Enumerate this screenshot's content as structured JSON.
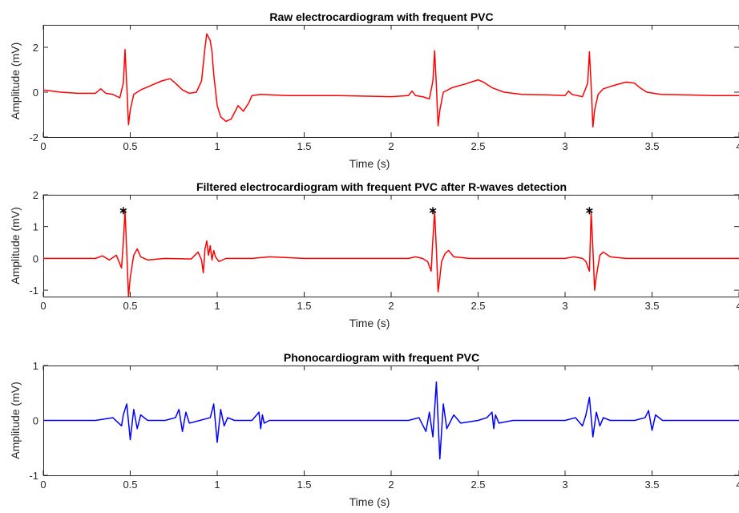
{
  "chart_data": [
    {
      "type": "line",
      "title": "Raw electrocardiogram with frequent PVC",
      "xlabel": "Time (s)",
      "ylabel": "Amplitude (mV)",
      "xlim": [
        0,
        4
      ],
      "ylim": [
        -2,
        3
      ],
      "xticks": [
        0,
        0.5,
        1,
        1.5,
        2,
        2.5,
        3,
        3.5,
        4
      ],
      "xtick_labels": [
        "0",
        "0.5",
        "1",
        "1.5",
        "2",
        "2.5",
        "3",
        "3.5",
        "4"
      ],
      "yticks": [
        -2,
        0,
        2
      ],
      "ytick_labels": [
        "-2",
        "0",
        "2"
      ],
      "grid": false,
      "series": [
        {
          "color": "#ff0000",
          "x": [
            0,
            0.1,
            0.2,
            0.3,
            0.33,
            0.36,
            0.4,
            0.44,
            0.46,
            0.47,
            0.48,
            0.49,
            0.5,
            0.52,
            0.56,
            0.62,
            0.68,
            0.73,
            0.76,
            0.8,
            0.84,
            0.88,
            0.91,
            0.93,
            0.94,
            0.96,
            0.97,
            0.98,
            1.0,
            1.02,
            1.05,
            1.08,
            1.12,
            1.15,
            1.18,
            1.2,
            1.25,
            1.4,
            1.7,
            2.0,
            2.1,
            2.12,
            2.14,
            2.18,
            2.22,
            2.24,
            2.25,
            2.26,
            2.27,
            2.28,
            2.3,
            2.35,
            2.42,
            2.5,
            2.53,
            2.58,
            2.65,
            2.75,
            2.9,
            3.0,
            3.02,
            3.04,
            3.1,
            3.13,
            3.14,
            3.15,
            3.16,
            3.17,
            3.19,
            3.22,
            3.28,
            3.35,
            3.4,
            3.43,
            3.47,
            3.55,
            3.7,
            3.85,
            4.0
          ],
          "y": [
            0.1,
            0,
            -0.05,
            -0.05,
            0.15,
            -0.05,
            -0.1,
            -0.25,
            0.4,
            1.9,
            0.3,
            -1.45,
            -0.8,
            -0.1,
            0.1,
            0.3,
            0.5,
            0.6,
            0.4,
            0.1,
            -0.05,
            0,
            0.5,
            2.0,
            2.6,
            2.3,
            1.8,
            0.8,
            -0.6,
            -1.1,
            -1.3,
            -1.2,
            -0.6,
            -0.85,
            -0.5,
            -0.15,
            -0.1,
            -0.15,
            -0.15,
            -0.2,
            -0.15,
            0.05,
            -0.15,
            -0.2,
            -0.3,
            0.5,
            1.85,
            0.3,
            -1.5,
            -0.8,
            0,
            0.2,
            0.35,
            0.55,
            0.45,
            0.2,
            0,
            -0.1,
            -0.12,
            -0.15,
            0.05,
            -0.1,
            -0.2,
            0.4,
            1.8,
            0.3,
            -1.55,
            -0.8,
            -0.1,
            0.15,
            0.3,
            0.45,
            0.4,
            0.2,
            0,
            -0.1,
            -0.12,
            -0.15,
            -0.15
          ]
        }
      ]
    },
    {
      "type": "line",
      "title": "Filtered electrocardiogram with frequent PVC after R-waves detection",
      "xlabel": "Time (s)",
      "ylabel": "Amplitude (mV)",
      "xlim": [
        0,
        4
      ],
      "ylim": [
        -1.2,
        2
      ],
      "xticks": [
        0,
        0.5,
        1,
        1.5,
        2,
        2.5,
        3,
        3.5,
        4
      ],
      "xtick_labels": [
        "0",
        "0.5",
        "1",
        "1.5",
        "2",
        "2.5",
        "3",
        "3.5",
        "4"
      ],
      "yticks": [
        -1,
        0,
        1,
        2
      ],
      "ytick_labels": [
        "-1",
        "0",
        "1",
        "2"
      ],
      "grid": false,
      "series": [
        {
          "color": "#ff0000",
          "x": [
            0,
            0.2,
            0.3,
            0.34,
            0.38,
            0.42,
            0.45,
            0.46,
            0.47,
            0.48,
            0.49,
            0.5,
            0.52,
            0.54,
            0.56,
            0.6,
            0.7,
            0.85,
            0.89,
            0.91,
            0.92,
            0.93,
            0.94,
            0.95,
            0.96,
            0.97,
            0.98,
            0.99,
            1.01,
            1.05,
            1.2,
            1.3,
            1.5,
            1.8,
            2.0,
            2.1,
            2.14,
            2.18,
            2.21,
            2.23,
            2.24,
            2.25,
            2.26,
            2.27,
            2.28,
            2.29,
            2.31,
            2.33,
            2.36,
            2.45,
            2.6,
            2.8,
            3.0,
            3.05,
            3.1,
            3.12,
            3.14,
            3.15,
            3.16,
            3.17,
            3.18,
            3.2,
            3.22,
            3.26,
            3.35,
            3.5,
            3.7,
            3.9,
            4.0
          ],
          "y": [
            0,
            0,
            0,
            0.08,
            -0.05,
            0.1,
            -0.3,
            0.5,
            1.5,
            0.2,
            -1.2,
            -0.6,
            0.1,
            0.3,
            0.05,
            -0.05,
            0,
            -0.02,
            0.2,
            -0.05,
            -0.45,
            0.3,
            0.55,
            0.1,
            0.4,
            -0.05,
            0.25,
            0.05,
            -0.1,
            0,
            0,
            0.05,
            0,
            0,
            0,
            0,
            0.05,
            0,
            -0.1,
            -0.4,
            0.6,
            1.45,
            0.3,
            -1.05,
            -0.6,
            -0.1,
            0.15,
            0.25,
            0.05,
            0,
            0,
            0,
            0,
            0.05,
            0,
            -0.1,
            -0.4,
            1.45,
            0.3,
            -1.0,
            -0.55,
            0.1,
            0.2,
            0.05,
            0,
            0,
            0,
            0,
            0
          ]
        },
        {
          "type": "scatter",
          "marker": "*",
          "color": "#000000",
          "x": [
            0.46,
            2.24,
            3.14
          ],
          "y": [
            1.5,
            1.5,
            1.5
          ]
        }
      ]
    },
    {
      "type": "line",
      "title": "Phonocardiogram with frequent PVC",
      "xlabel": "Time (s)",
      "ylabel": "Amplitude (mV)",
      "xlim": [
        0,
        4
      ],
      "ylim": [
        -1,
        1
      ],
      "xticks": [
        0,
        0.5,
        1,
        1.5,
        2,
        2.5,
        3,
        3.5,
        4
      ],
      "xtick_labels": [
        "0",
        "0.5",
        "1",
        "1.5",
        "2",
        "2.5",
        "3",
        "3.5",
        "4"
      ],
      "yticks": [
        -1,
        0,
        1
      ],
      "ytick_labels": [
        "-1",
        "0",
        "1"
      ],
      "grid": false,
      "series": [
        {
          "color": "#0000ff",
          "x": [
            0,
            0.3,
            0.4,
            0.45,
            0.46,
            0.48,
            0.5,
            0.52,
            0.54,
            0.56,
            0.6,
            0.7,
            0.76,
            0.78,
            0.8,
            0.82,
            0.84,
            0.9,
            0.96,
            0.98,
            1.0,
            1.02,
            1.04,
            1.06,
            1.1,
            1.2,
            1.24,
            1.25,
            1.26,
            1.27,
            1.3,
            1.5,
            1.8,
            2.1,
            2.16,
            2.2,
            2.22,
            2.24,
            2.26,
            2.28,
            2.3,
            2.32,
            2.36,
            2.4,
            2.5,
            2.55,
            2.58,
            2.59,
            2.6,
            2.62,
            2.7,
            3.0,
            3.06,
            3.1,
            3.12,
            3.14,
            3.16,
            3.18,
            3.2,
            3.22,
            3.26,
            3.4,
            3.46,
            3.48,
            3.5,
            3.52,
            3.56,
            3.7,
            4.0
          ],
          "y": [
            0,
            0,
            0.05,
            -0.1,
            0.1,
            0.3,
            -0.35,
            0.2,
            -0.15,
            0.1,
            0,
            0,
            0.05,
            0.2,
            -0.2,
            0.15,
            -0.05,
            0,
            0.05,
            0.3,
            -0.4,
            0.2,
            -0.1,
            0.05,
            0,
            0,
            0.15,
            -0.15,
            0.1,
            -0.05,
            0,
            0,
            0,
            0,
            0.05,
            -0.2,
            0.15,
            -0.3,
            0.7,
            -0.7,
            0.3,
            -0.15,
            0.1,
            -0.05,
            0,
            0.05,
            0.15,
            -0.15,
            0.1,
            -0.05,
            0,
            0,
            0.05,
            -0.1,
            0.1,
            0.42,
            -0.3,
            0.15,
            -0.1,
            0.05,
            0,
            0,
            0.05,
            0.18,
            -0.18,
            0.1,
            0,
            0,
            0
          ]
        }
      ]
    }
  ]
}
